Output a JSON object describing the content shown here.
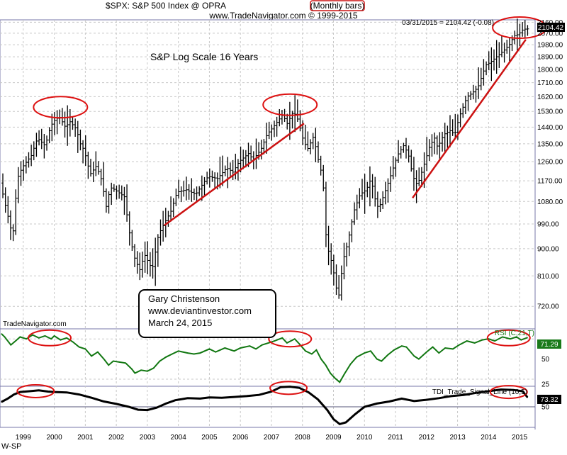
{
  "header": {
    "title_prefix": "$SPX:  S&P 500 Index @ OPRA",
    "title_badge": "(Monthly bars)",
    "subtitle": "www.TradeNavigator.com © 1999-2015"
  },
  "footer_label": "W-SP",
  "colors": {
    "bars": "#000000",
    "trendline": "#cc1111",
    "annotation_ellipse": "#dd1111",
    "rsi_line": "#117711",
    "rsi_badge": "#1a7a1a",
    "tdi_line": "#000000",
    "ref_line": "#55557a",
    "grid": "#c8c8c8",
    "panel_border": "#7777aa"
  },
  "chart_data": [
    {
      "type": "ohlc",
      "panel": "price",
      "title": "S&P Log Scale 16 Years",
      "yscale": "log",
      "ylim": [
        660,
        2180
      ],
      "yticks": [
        720,
        810,
        900,
        990,
        1080,
        1170,
        1260,
        1350,
        1440,
        1530,
        1620,
        1710,
        1800,
        1890,
        1980,
        2070,
        2160
      ],
      "last_value_label": "03/31/2015 = 2104.42 (-0.08)",
      "last_value_badge": "2104.42",
      "xlim": [
        1998.25,
        2015.5
      ],
      "xticks": [
        "1999",
        "2000",
        "2001",
        "2002",
        "2003",
        "2004",
        "2005",
        "2006",
        "2007",
        "2008",
        "2009",
        "2010",
        "2011",
        "2012",
        "2013",
        "2014",
        "2015"
      ],
      "watermark": "TradeNavigator.com",
      "annotation_box": [
        "Gary Christenson",
        "www.deviantinvestor.com",
        "March 24, 2015"
      ],
      "anchors": [
        [
          1998.3,
          1160
        ],
        [
          1998.55,
          1020
        ],
        [
          1998.7,
          940
        ],
        [
          1998.85,
          1180
        ],
        [
          1999.0,
          1230
        ],
        [
          1999.3,
          1290
        ],
        [
          1999.5,
          1380
        ],
        [
          1999.75,
          1340
        ],
        [
          1999.9,
          1430
        ],
        [
          2000.0,
          1470
        ],
        [
          2000.2,
          1500
        ],
        [
          2000.4,
          1440
        ],
        [
          2000.55,
          1470
        ],
        [
          2000.75,
          1430
        ],
        [
          2000.9,
          1340
        ],
        [
          2001.0,
          1320
        ],
        [
          2001.2,
          1200
        ],
        [
          2001.4,
          1240
        ],
        [
          2001.6,
          1160
        ],
        [
          2001.7,
          1050
        ],
        [
          2001.85,
          1140
        ],
        [
          2002.0,
          1130
        ],
        [
          2002.3,
          1100
        ],
        [
          2002.5,
          930
        ],
        [
          2002.65,
          860
        ],
        [
          2002.8,
          830
        ],
        [
          2002.95,
          880
        ],
        [
          2003.1,
          850
        ],
        [
          2003.2,
          830
        ],
        [
          2003.4,
          950
        ],
        [
          2003.6,
          995
        ],
        [
          2003.8,
          1040
        ],
        [
          2004.0,
          1120
        ],
        [
          2004.3,
          1130
        ],
        [
          2004.6,
          1110
        ],
        [
          2004.8,
          1150
        ],
        [
          2005.0,
          1190
        ],
        [
          2005.3,
          1180
        ],
        [
          2005.6,
          1230
        ],
        [
          2005.8,
          1210
        ],
        [
          2006.0,
          1260
        ],
        [
          2006.3,
          1300
        ],
        [
          2006.45,
          1270
        ],
        [
          2006.7,
          1320
        ],
        [
          2006.9,
          1400
        ],
        [
          2007.1,
          1440
        ],
        [
          2007.4,
          1510
        ],
        [
          2007.55,
          1460
        ],
        [
          2007.75,
          1530
        ],
        [
          2007.9,
          1480
        ],
        [
          2008.05,
          1380
        ],
        [
          2008.2,
          1320
        ],
        [
          2008.4,
          1390
        ],
        [
          2008.55,
          1270
        ],
        [
          2008.7,
          1180
        ],
        [
          2008.8,
          950
        ],
        [
          2008.9,
          880
        ],
        [
          2009.0,
          850
        ],
        [
          2009.1,
          790
        ],
        [
          2009.2,
          740
        ],
        [
          2009.35,
          860
        ],
        [
          2009.5,
          920
        ],
        [
          2009.7,
          1040
        ],
        [
          2009.9,
          1110
        ],
        [
          2010.1,
          1130
        ],
        [
          2010.25,
          1180
        ],
        [
          2010.4,
          1080
        ],
        [
          2010.5,
          1050
        ],
        [
          2010.7,
          1120
        ],
        [
          2010.9,
          1200
        ],
        [
          2011.1,
          1290
        ],
        [
          2011.3,
          1340
        ],
        [
          2011.45,
          1300
        ],
        [
          2011.6,
          1190
        ],
        [
          2011.75,
          1150
        ],
        [
          2011.95,
          1240
        ],
        [
          2012.15,
          1340
        ],
        [
          2012.3,
          1380
        ],
        [
          2012.4,
          1330
        ],
        [
          2012.6,
          1400
        ],
        [
          2012.8,
          1420
        ],
        [
          2012.95,
          1400
        ],
        [
          2013.1,
          1500
        ],
        [
          2013.35,
          1620
        ],
        [
          2013.5,
          1640
        ],
        [
          2013.7,
          1680
        ],
        [
          2013.95,
          1830
        ],
        [
          2014.1,
          1850
        ],
        [
          2014.3,
          1890
        ],
        [
          2014.55,
          1940
        ],
        [
          2014.75,
          1990
        ],
        [
          2014.85,
          2050
        ],
        [
          2015.0,
          2060
        ],
        [
          2015.15,
          2100
        ],
        [
          2015.25,
          2105
        ]
      ],
      "trendlines": [
        {
          "from": [
            2003.55,
            985
          ],
          "to": [
            2008.05,
            1460
          ]
        },
        {
          "from": [
            2011.55,
            1095
          ],
          "to": [
            2015.2,
            2020
          ]
        }
      ],
      "highlight_ellipses": [
        {
          "x": 2000.2,
          "y": 1555
        },
        {
          "x": 2007.6,
          "y": 1570
        },
        {
          "x": 2015.0,
          "y": 2115
        }
      ]
    },
    {
      "type": "line",
      "panel": "rsi",
      "label": "RSI (C,21,T)",
      "last_value": "71.29",
      "ylim": [
        23,
        80
      ],
      "yticks": [
        25,
        50
      ],
      "reference_levels": [
        30,
        70
      ],
      "points": [
        [
          1998.3,
          75
        ],
        [
          1998.4,
          72
        ],
        [
          1998.6,
          64
        ],
        [
          1998.75,
          68
        ],
        [
          1998.9,
          72
        ],
        [
          1999.1,
          70
        ],
        [
          1999.3,
          74
        ],
        [
          1999.5,
          71
        ],
        [
          1999.7,
          73
        ],
        [
          1999.9,
          70
        ],
        [
          2000.0,
          73
        ],
        [
          2000.2,
          69
        ],
        [
          2000.4,
          71
        ],
        [
          2000.6,
          67
        ],
        [
          2000.8,
          62
        ],
        [
          2001.0,
          60
        ],
        [
          2001.2,
          53
        ],
        [
          2001.4,
          57
        ],
        [
          2001.6,
          50
        ],
        [
          2001.75,
          44
        ],
        [
          2001.9,
          48
        ],
        [
          2002.1,
          47
        ],
        [
          2002.3,
          46
        ],
        [
          2002.5,
          40
        ],
        [
          2002.6,
          36
        ],
        [
          2002.8,
          39
        ],
        [
          2003.0,
          38
        ],
        [
          2003.2,
          41
        ],
        [
          2003.4,
          48
        ],
        [
          2003.6,
          52
        ],
        [
          2003.8,
          55
        ],
        [
          2004.0,
          58
        ],
        [
          2004.3,
          56
        ],
        [
          2004.5,
          55
        ],
        [
          2004.7,
          56
        ],
        [
          2005.0,
          60
        ],
        [
          2005.2,
          57
        ],
        [
          2005.5,
          61
        ],
        [
          2005.8,
          58
        ],
        [
          2006.0,
          61
        ],
        [
          2006.3,
          63
        ],
        [
          2006.5,
          60
        ],
        [
          2006.7,
          64
        ],
        [
          2006.9,
          66
        ],
        [
          2007.1,
          68
        ],
        [
          2007.35,
          71
        ],
        [
          2007.5,
          66
        ],
        [
          2007.75,
          70
        ],
        [
          2007.9,
          65
        ],
        [
          2008.1,
          58
        ],
        [
          2008.3,
          55
        ],
        [
          2008.45,
          59
        ],
        [
          2008.6,
          50
        ],
        [
          2008.75,
          44
        ],
        [
          2008.9,
          36
        ],
        [
          2009.05,
          31
        ],
        [
          2009.2,
          27
        ],
        [
          2009.35,
          35
        ],
        [
          2009.55,
          45
        ],
        [
          2009.75,
          52
        ],
        [
          2010.0,
          56
        ],
        [
          2010.2,
          58
        ],
        [
          2010.4,
          50
        ],
        [
          2010.55,
          48
        ],
        [
          2010.75,
          54
        ],
        [
          2010.95,
          59
        ],
        [
          2011.2,
          63
        ],
        [
          2011.35,
          62
        ],
        [
          2011.6,
          53
        ],
        [
          2011.75,
          50
        ],
        [
          2012.0,
          57
        ],
        [
          2012.2,
          62
        ],
        [
          2012.4,
          56
        ],
        [
          2012.6,
          61
        ],
        [
          2012.85,
          60
        ],
        [
          2013.05,
          64
        ],
        [
          2013.3,
          68
        ],
        [
          2013.55,
          66
        ],
        [
          2013.8,
          69
        ],
        [
          2014.0,
          70
        ],
        [
          2014.2,
          68
        ],
        [
          2014.45,
          72
        ],
        [
          2014.7,
          70
        ],
        [
          2014.9,
          72
        ],
        [
          2015.05,
          69
        ],
        [
          2015.25,
          71.29
        ]
      ],
      "highlight_ellipses": [
        {
          "x": 1999.85,
          "y": 71
        },
        {
          "x": 2007.6,
          "y": 70
        },
        {
          "x": 2014.65,
          "y": 71
        }
      ]
    },
    {
      "type": "line",
      "panel": "tdi",
      "label": "TDI_Trade_Signal_Line (10,5)",
      "last_value": "73.32",
      "ylim": [
        0,
        100
      ],
      "yticks": [
        50
      ],
      "reference_levels": [
        50
      ],
      "points": [
        [
          1998.3,
          62
        ],
        [
          1998.5,
          70
        ],
        [
          1998.7,
          80
        ],
        [
          1998.9,
          86
        ],
        [
          1999.2,
          88
        ],
        [
          1999.5,
          90
        ],
        [
          1999.8,
          87
        ],
        [
          2000.0,
          86
        ],
        [
          2000.4,
          85
        ],
        [
          2000.8,
          80
        ],
        [
          2001.2,
          72
        ],
        [
          2001.6,
          63
        ],
        [
          2002.0,
          57
        ],
        [
          2002.4,
          50
        ],
        [
          2002.7,
          43
        ],
        [
          2003.0,
          42
        ],
        [
          2003.3,
          48
        ],
        [
          2003.6,
          58
        ],
        [
          2003.9,
          66
        ],
        [
          2004.3,
          71
        ],
        [
          2004.7,
          70
        ],
        [
          2005.0,
          73
        ],
        [
          2005.4,
          72
        ],
        [
          2005.8,
          74
        ],
        [
          2006.2,
          76
        ],
        [
          2006.6,
          79
        ],
        [
          2007.0,
          87
        ],
        [
          2007.3,
          98
        ],
        [
          2007.6,
          99
        ],
        [
          2007.9,
          96
        ],
        [
          2008.2,
          85
        ],
        [
          2008.5,
          68
        ],
        [
          2008.8,
          42
        ],
        [
          2009.0,
          20
        ],
        [
          2009.2,
          8
        ],
        [
          2009.4,
          12
        ],
        [
          2009.7,
          32
        ],
        [
          2010.0,
          50
        ],
        [
          2010.4,
          58
        ],
        [
          2010.8,
          63
        ],
        [
          2011.2,
          70
        ],
        [
          2011.6,
          64
        ],
        [
          2012.0,
          67
        ],
        [
          2012.4,
          71
        ],
        [
          2012.8,
          76
        ],
        [
          2013.2,
          79
        ],
        [
          2013.6,
          84
        ],
        [
          2014.0,
          88
        ],
        [
          2014.4,
          92
        ],
        [
          2014.8,
          91
        ],
        [
          2015.1,
          88
        ],
        [
          2015.25,
          73.32
        ]
      ],
      "highlight_ellipses": [
        {
          "x": 1999.4,
          "y": 88
        },
        {
          "x": 2007.55,
          "y": 96
        },
        {
          "x": 2014.65,
          "y": 86
        }
      ]
    }
  ]
}
